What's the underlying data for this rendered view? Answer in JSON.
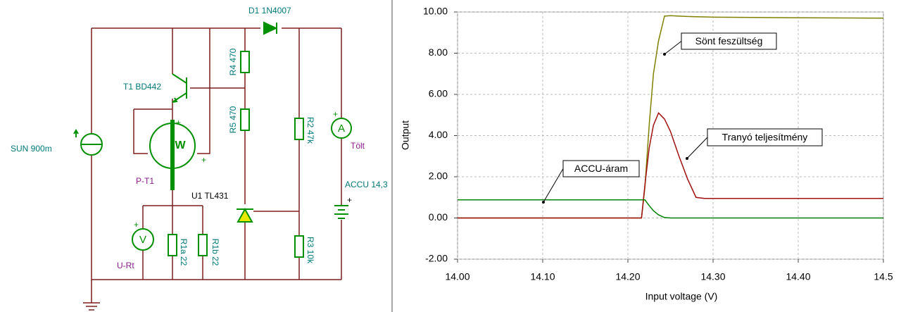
{
  "schematic": {
    "labels": [
      "D1 1N4007",
      "R4 470",
      "T1 BD442",
      "R5 470",
      "R2 47k",
      "SUN 900m",
      "W",
      "P-T1",
      "U1 TL431",
      "A",
      "Tölt",
      "ACCU 14,3",
      "V",
      "U-Rt",
      "R1a 22",
      "R1b 22",
      "R3 10k",
      "+",
      "+",
      "+",
      "+",
      "+"
    ]
  },
  "chart_data": {
    "type": "line",
    "xlabel": "Input voltage (V)",
    "ylabel": "Output",
    "x": [
      14.0,
      14.216,
      14.22,
      14.225,
      14.23,
      14.236,
      14.243,
      14.25,
      14.26,
      14.27,
      14.28,
      14.29,
      14.3,
      14.4,
      14.5
    ],
    "xlim": [
      14.0,
      14.5
    ],
    "ylim": [
      -2,
      10
    ],
    "xticks": [
      {
        "value": 14.0,
        "label": "14.00"
      },
      {
        "value": 14.1,
        "label": "14.10"
      },
      {
        "value": 14.2,
        "label": "14.20"
      },
      {
        "value": 14.3,
        "label": "14.30"
      },
      {
        "value": 14.4,
        "label": "14.40"
      },
      {
        "value": 14.5,
        "label": "14.5"
      }
    ],
    "yticks": [
      {
        "value": -2,
        "label": "-2.00"
      },
      {
        "value": 0,
        "label": "0.00"
      },
      {
        "value": 2,
        "label": "2.00"
      },
      {
        "value": 4,
        "label": "4.00"
      },
      {
        "value": 6,
        "label": "6.00"
      },
      {
        "value": 8,
        "label": "8.00"
      },
      {
        "value": 10,
        "label": "10.00"
      }
    ],
    "grid": true,
    "series": [
      {
        "name": "Sönt feszültség",
        "color": "#808000",
        "values": [
          0,
          0,
          1.5,
          4.5,
          7.0,
          8.6,
          9.8,
          9.82,
          9.8,
          9.78,
          9.77,
          9.76,
          9.75,
          9.72,
          9.7
        ]
      },
      {
        "name": "Tranyó teljesítmény",
        "color": "#a01010",
        "values": [
          0,
          0,
          1.6,
          3.4,
          4.5,
          5.1,
          4.8,
          4.2,
          3.0,
          1.9,
          1.0,
          0.95,
          0.95,
          0.95,
          0.95
        ]
      },
      {
        "name": "ACCU-áram",
        "color": "#008000",
        "values": [
          0.88,
          0.88,
          0.88,
          0.6,
          0.35,
          0.15,
          0.02,
          0,
          0,
          0,
          0,
          0,
          0,
          0,
          0
        ]
      }
    ]
  }
}
